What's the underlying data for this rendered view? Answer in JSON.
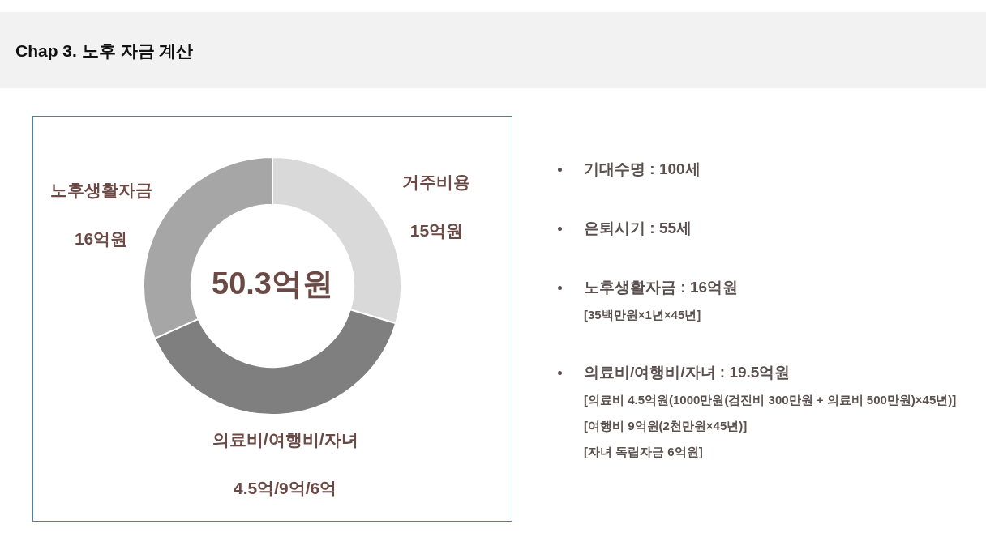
{
  "chart_data": [
    {
      "type": "donut",
      "title": "Chap 3. 노후 자금 계산",
      "categories": [
        "거주비용",
        "의료비/여행비/자녀",
        "노후생활자금"
      ],
      "values": [
        15,
        19.5,
        16
      ],
      "colors": [
        "#d9d9d9",
        "#7f7f7f",
        "#a6a6a6"
      ],
      "value_labels": [
        "15억원",
        null,
        "16억원"
      ],
      "annotations": [
        "50.3억원",
        {
          "text": "4.5억/9억/6억",
          "x": "의료비/여행비/자녀"
        }
      ],
      "legend": false
    },
    {
      "type": "other",
      "title": "기대수명 : 100세"
    },
    {
      "type": "other",
      "title": "은퇴시기 : 55세"
    },
    {
      "type": "other",
      "title": "노후생활자금 : 16억원",
      "annotations": [
        "[35백만원×1년×45년]"
      ]
    },
    {
      "type": "other",
      "title": "의료비/여행비/자녀 : 19.5억원",
      "annotations": [
        "[의료비 4.5억원(1000만원(검진비 300만원 + 의료비 500만원)×45년)]",
        "[여행비 9억원(2천만원×45년)]",
        "[자녀 독립자금 6억원]"
      ]
    }
  ]
}
